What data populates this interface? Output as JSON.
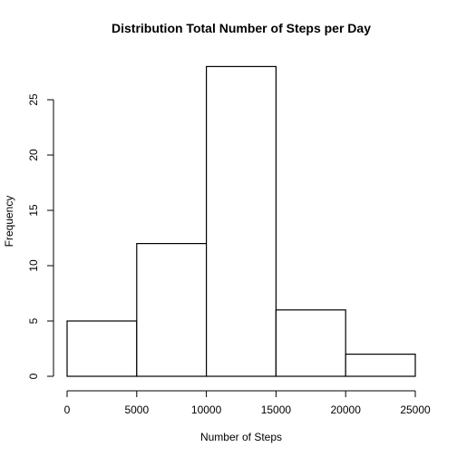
{
  "chart_data": {
    "type": "bar",
    "title": "Distribution Total Number of Steps per Day",
    "xlabel": "Number of Steps",
    "ylabel": "Frequency",
    "bins": [
      {
        "start": 0,
        "end": 5000,
        "count": 5
      },
      {
        "start": 5000,
        "end": 10000,
        "count": 12
      },
      {
        "start": 10000,
        "end": 15000,
        "count": 28
      },
      {
        "start": 15000,
        "end": 20000,
        "count": 6
      },
      {
        "start": 20000,
        "end": 25000,
        "count": 2
      }
    ],
    "xlim": [
      0,
      25000
    ],
    "ylim": [
      0,
      28
    ],
    "x_ticks": [
      0,
      5000,
      10000,
      15000,
      20000,
      25000
    ],
    "y_ticks": [
      0,
      5,
      10,
      15,
      20,
      25
    ],
    "grid": false,
    "bar_fill": "#ffffff",
    "bar_stroke": "#000000"
  }
}
